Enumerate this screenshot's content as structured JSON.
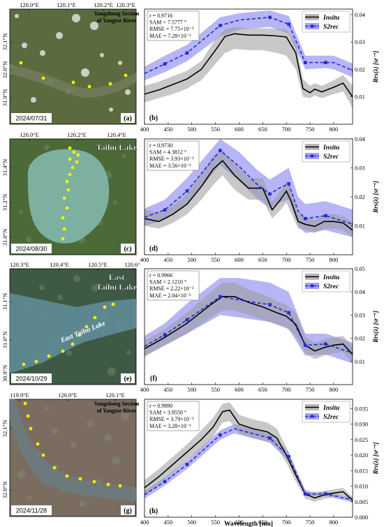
{
  "maps": [
    {
      "panel": "(a)",
      "date": "2024/07/31",
      "title_lines": [
        "Yangzhong Section",
        "of Yangtze River"
      ],
      "lon_ticks": [
        "120.0°E",
        "120.1°E",
        "120.2°E",
        "120.3°E"
      ],
      "lat_ticks": [
        "32.1°N",
        "32.0°N",
        "31.9°N"
      ],
      "water_label": ""
    },
    {
      "panel": "(c)",
      "date": "2024/08/30",
      "title_lines": [
        "Taihu Lake"
      ],
      "lon_ticks": [
        "120.0°E",
        "120.2°E",
        "120.4°E"
      ],
      "lat_ticks": [
        "31.4°N",
        "31.2°N",
        "31.0°N"
      ],
      "water_label": ""
    },
    {
      "panel": "(e)",
      "date": "2024/10/29",
      "title_lines": [
        "East",
        "Taihu Lake"
      ],
      "lon_ticks": [
        "120.3°E",
        "120.4°E",
        "120.5°E",
        "120.6°E"
      ],
      "lat_ticks": [
        "31.1°N",
        "31.0°N",
        "30.9°N"
      ],
      "water_label": "East Taihu Lake"
    },
    {
      "panel": "(g)",
      "date": "2024/11/28",
      "title_lines": [
        "Yangzhong Section",
        "of Yangtze River"
      ],
      "lon_ticks": [
        "119.9°E",
        "120.0°E",
        "120.1°E"
      ],
      "lat_ticks": [
        "32.1°N",
        "32.0°N"
      ],
      "water_label": ""
    }
  ],
  "colors": {
    "insitu_line": "#000000",
    "insitu_band": "#9a9a9a",
    "s2rec_line": "#1f2fd0",
    "s2rec_band": "#7c78ee",
    "sample_points": "#f5f000"
  },
  "chart_data": [
    {
      "type": "line",
      "panel": "(b)",
      "stats": [
        "r = 0.9716",
        "SAM = 7.5777 °",
        "RMSE = 7.75×10⁻³",
        "MAE = 7.28×10⁻³"
      ],
      "legend": [
        "Insitu",
        "S2rec"
      ],
      "legend_position": "top-right",
      "ylabel": "Rrs(λ) [sr⁻¹]",
      "xlabel": "",
      "xlim": [
        400,
        840
      ],
      "ylim": [
        0,
        0.042
      ],
      "xticks": [
        400,
        450,
        500,
        550,
        600,
        650,
        700,
        750,
        800
      ],
      "yticks": [
        0.01,
        0.02,
        0.03,
        0.04
      ],
      "ytick_labels": [
        "0.01",
        "0.02",
        "0.03",
        "0.04"
      ],
      "marker_x": [
        443,
        490,
        560,
        665,
        705,
        740,
        783,
        842
      ],
      "series": [
        {
          "name": "Insitu",
          "x": [
            400,
            430,
            460,
            490,
            520,
            550,
            570,
            590,
            620,
            650,
            680,
            700,
            720,
            735,
            750,
            760,
            775,
            800,
            820,
            840
          ],
          "y": [
            0.011,
            0.0125,
            0.0145,
            0.0165,
            0.02,
            0.027,
            0.032,
            0.033,
            0.0325,
            0.0325,
            0.0322,
            0.0318,
            0.026,
            0.013,
            0.0115,
            0.0128,
            0.0118,
            0.0135,
            0.015,
            0.01
          ],
          "lower": [
            0.008,
            0.0095,
            0.011,
            0.013,
            0.016,
            0.022,
            0.026,
            0.0275,
            0.027,
            0.027,
            0.026,
            0.025,
            0.02,
            0.01,
            0.0095,
            0.0105,
            0.0095,
            0.011,
            0.012,
            0.006
          ],
          "upper": [
            0.014,
            0.0155,
            0.0175,
            0.0195,
            0.023,
            0.031,
            0.0345,
            0.0355,
            0.035,
            0.035,
            0.0348,
            0.0345,
            0.03,
            0.0165,
            0.014,
            0.015,
            0.014,
            0.016,
            0.018,
            0.014
          ]
        },
        {
          "name": "S2rec",
          "x": [
            400,
            443,
            490,
            560,
            600,
            665,
            705,
            740,
            783,
            800,
            842
          ],
          "y": [
            0.0185,
            0.022,
            0.026,
            0.036,
            0.038,
            0.039,
            0.0365,
            0.0225,
            0.0225,
            0.0225,
            0.0195
          ],
          "lower": [
            0.016,
            0.019,
            0.023,
            0.032,
            0.0345,
            0.0355,
            0.033,
            0.02,
            0.0205,
            0.02,
            0.017
          ],
          "upper": [
            0.021,
            0.025,
            0.029,
            0.039,
            0.0405,
            0.0415,
            0.0395,
            0.025,
            0.025,
            0.025,
            0.022
          ]
        }
      ]
    },
    {
      "type": "line",
      "panel": "(d)",
      "stats": [
        "r = 0.9730",
        "SAM = 4.3812 °",
        "RMSE = 3.93×10⁻³",
        "MAE = 3.56×10⁻³"
      ],
      "legend": [
        "Insitu",
        "S2rec"
      ],
      "legend_position": "top-right",
      "ylabel": "Rrs(λ) [sr⁻¹]",
      "xlabel": "",
      "xlim": [
        400,
        840
      ],
      "ylim": [
        0,
        0.04
      ],
      "xticks": [
        400,
        450,
        500,
        550,
        600,
        650,
        700,
        750,
        800
      ],
      "yticks": [
        0.01,
        0.02,
        0.03,
        0.04
      ],
      "ytick_labels": [
        "0.01",
        "0.02",
        "0.03",
        "0.04"
      ],
      "marker_x": [
        443,
        490,
        560,
        665,
        705,
        740,
        783,
        842
      ],
      "series": [
        {
          "name": "Insitu",
          "x": [
            400,
            430,
            460,
            490,
            520,
            545,
            565,
            590,
            620,
            650,
            670,
            685,
            700,
            710,
            725,
            740,
            760,
            780,
            800,
            820,
            840
          ],
          "y": [
            0.0125,
            0.0115,
            0.014,
            0.0175,
            0.0235,
            0.0295,
            0.0325,
            0.0275,
            0.023,
            0.023,
            0.0155,
            0.0185,
            0.022,
            0.0185,
            0.0115,
            0.0105,
            0.0098,
            0.0115,
            0.0115,
            0.011,
            0.0085
          ],
          "lower": [
            0.01,
            0.009,
            0.011,
            0.014,
            0.019,
            0.024,
            0.0275,
            0.0225,
            0.019,
            0.019,
            0.0125,
            0.015,
            0.018,
            0.0145,
            0.009,
            0.0085,
            0.0075,
            0.009,
            0.009,
            0.0085,
            0.006
          ],
          "upper": [
            0.0155,
            0.0145,
            0.017,
            0.021,
            0.028,
            0.034,
            0.036,
            0.0315,
            0.0265,
            0.0265,
            0.0185,
            0.0215,
            0.0255,
            0.0225,
            0.014,
            0.013,
            0.012,
            0.014,
            0.014,
            0.0135,
            0.011
          ]
        },
        {
          "name": "S2rec",
          "x": [
            400,
            443,
            490,
            560,
            600,
            640,
            665,
            685,
            705,
            725,
            740,
            783,
            842
          ],
          "y": [
            0.013,
            0.0155,
            0.022,
            0.036,
            0.0305,
            0.024,
            0.021,
            0.023,
            0.0245,
            0.015,
            0.0125,
            0.0135,
            0.0105
          ],
          "lower": [
            0.01,
            0.012,
            0.0175,
            0.031,
            0.0255,
            0.019,
            0.016,
            0.018,
            0.019,
            0.01,
            0.0075,
            0.0085,
            0.006
          ],
          "upper": [
            0.016,
            0.019,
            0.0265,
            0.04,
            0.0355,
            0.029,
            0.026,
            0.028,
            0.03,
            0.02,
            0.0175,
            0.0185,
            0.0155
          ]
        }
      ]
    },
    {
      "type": "line",
      "panel": "(f)",
      "stats": [
        "r = 0.9966",
        "SAM = 2.1210 °",
        "RMSE = 2.22×10⁻³",
        "MAE = 2.04×10⁻³"
      ],
      "legend": [
        "Insitu",
        "S2rec"
      ],
      "legend_position": "top-right",
      "ylabel": "Rrs(λ) [sr⁻¹]",
      "xlabel": "",
      "xlim": [
        400,
        840
      ],
      "ylim": [
        0,
        0.05
      ],
      "xticks": [
        400,
        450,
        500,
        550,
        600,
        650,
        700,
        750,
        800
      ],
      "yticks": [
        0.01,
        0.02,
        0.03,
        0.04,
        0.05
      ],
      "ytick_labels": [
        "0.01",
        "0.02",
        "0.03",
        "0.04",
        "0.05"
      ],
      "marker_x": [
        443,
        490,
        560,
        665,
        705,
        740,
        783,
        842
      ],
      "series": [
        {
          "name": "Insitu",
          "x": [
            400,
            440,
            490,
            540,
            565,
            590,
            620,
            650,
            680,
            700,
            720,
            740,
            760,
            780,
            800,
            820,
            840
          ],
          "y": [
            0.0155,
            0.02,
            0.0265,
            0.0345,
            0.038,
            0.038,
            0.0355,
            0.0335,
            0.031,
            0.0295,
            0.026,
            0.017,
            0.0145,
            0.016,
            0.017,
            0.0175,
            0.013
          ],
          "lower": [
            0.012,
            0.0165,
            0.022,
            0.029,
            0.032,
            0.032,
            0.03,
            0.028,
            0.026,
            0.0245,
            0.021,
            0.0135,
            0.011,
            0.0125,
            0.0135,
            0.014,
            0.0095
          ],
          "upper": [
            0.019,
            0.0235,
            0.031,
            0.04,
            0.044,
            0.044,
            0.041,
            0.039,
            0.036,
            0.0345,
            0.031,
            0.0205,
            0.018,
            0.0195,
            0.0205,
            0.021,
            0.0165
          ]
        },
        {
          "name": "S2rec",
          "x": [
            400,
            443,
            490,
            560,
            600,
            665,
            705,
            740,
            783,
            842
          ],
          "y": [
            0.0165,
            0.0215,
            0.028,
            0.038,
            0.0365,
            0.0345,
            0.031,
            0.017,
            0.0175,
            0.0135
          ],
          "lower": [
            0.0125,
            0.017,
            0.022,
            0.03,
            0.029,
            0.027,
            0.024,
            0.0125,
            0.013,
            0.009
          ],
          "upper": [
            0.021,
            0.0265,
            0.035,
            0.046,
            0.046,
            0.044,
            0.04,
            0.022,
            0.022,
            0.018
          ]
        }
      ]
    },
    {
      "type": "line",
      "panel": "(h)",
      "stats": [
        "r = 0.9890",
        "SAM = 3.9550 °",
        "RMSE = 3.79×10⁻³",
        "MAE = 3.28×10⁻³"
      ],
      "legend": [
        "Insitu",
        "S2rec"
      ],
      "legend_position": "top-right",
      "ylabel": "Rrs(λ) [sr⁻¹]",
      "xlabel": "Wavelength [nm]",
      "xlim": [
        400,
        840
      ],
      "ylim": [
        0,
        0.038
      ],
      "xticks": [
        400,
        450,
        500,
        550,
        600,
        650,
        700,
        750,
        800
      ],
      "yticks": [
        0.0,
        0.005,
        0.01,
        0.015,
        0.02,
        0.025,
        0.03,
        0.035
      ],
      "ytick_labels": [
        "0.000",
        "0.005",
        "0.010",
        "0.015",
        "0.020",
        "0.025",
        "0.030",
        "0.035"
      ],
      "marker_x": [
        443,
        490,
        560,
        665,
        705,
        740,
        783,
        842
      ],
      "series": [
        {
          "name": "Insitu",
          "x": [
            400,
            430,
            460,
            490,
            520,
            545,
            565,
            580,
            600,
            630,
            660,
            680,
            700,
            720,
            740,
            760,
            780,
            800,
            820,
            840
          ],
          "y": [
            0.0095,
            0.013,
            0.017,
            0.021,
            0.025,
            0.029,
            0.034,
            0.0345,
            0.03,
            0.0285,
            0.0275,
            0.0255,
            0.02,
            0.0135,
            0.0075,
            0.0062,
            0.0072,
            0.0078,
            0.0082,
            0.0055
          ],
          "lower": [
            0.007,
            0.0105,
            0.0145,
            0.0185,
            0.022,
            0.026,
            0.0305,
            0.031,
            0.027,
            0.0255,
            0.0245,
            0.0225,
            0.0175,
            0.0115,
            0.006,
            0.005,
            0.006,
            0.0065,
            0.007,
            0.0045
          ],
          "upper": [
            0.012,
            0.0155,
            0.0195,
            0.0235,
            0.028,
            0.032,
            0.0365,
            0.037,
            0.033,
            0.0315,
            0.0305,
            0.0285,
            0.0225,
            0.0155,
            0.009,
            0.0075,
            0.0085,
            0.009,
            0.0095,
            0.0065
          ]
        },
        {
          "name": "S2rec",
          "x": [
            400,
            443,
            490,
            560,
            590,
            665,
            705,
            740,
            783,
            842
          ],
          "y": [
            0.0072,
            0.0115,
            0.017,
            0.0265,
            0.0285,
            0.0255,
            0.0195,
            0.0075,
            0.0075,
            0.0055
          ],
          "lower": [
            0.006,
            0.0102,
            0.0156,
            0.025,
            0.027,
            0.024,
            0.018,
            0.0068,
            0.0068,
            0.0048
          ],
          "upper": [
            0.0085,
            0.0128,
            0.0184,
            0.028,
            0.03,
            0.027,
            0.021,
            0.0082,
            0.0082,
            0.0062
          ]
        }
      ]
    }
  ]
}
